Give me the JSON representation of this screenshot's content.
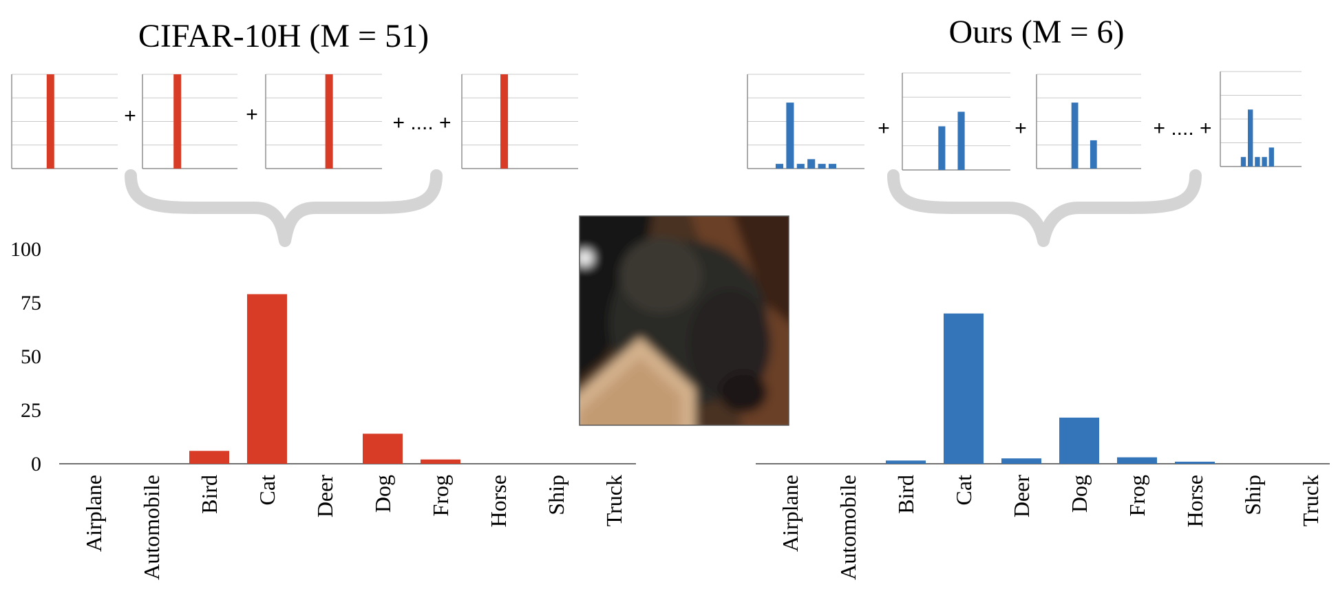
{
  "chart_data": [
    {
      "type": "bar",
      "title": "CIFAR-10H (M = 51)",
      "categories": [
        "Airplane",
        "Automobile",
        "Bird",
        "Cat",
        "Deer",
        "Dog",
        "Frog",
        "Horse",
        "Ship",
        "Truck"
      ],
      "values": [
        0,
        0,
        6,
        79,
        0,
        14,
        2,
        0,
        0,
        0
      ],
      "yticks": [
        "0",
        "25",
        "50",
        "75",
        "100"
      ],
      "ylim": [
        0,
        100
      ],
      "color": "#d83b26",
      "grid": false,
      "annotator_examples": [
        [
          0,
          0,
          0,
          100,
          0,
          0,
          0,
          0,
          0,
          0
        ],
        [
          0,
          0,
          0,
          100,
          0,
          0,
          0,
          0,
          0,
          0
        ],
        [
          0,
          0,
          0,
          0,
          0,
          100,
          0,
          0,
          0,
          0
        ],
        [
          0,
          0,
          0,
          100,
          0,
          0,
          0,
          0,
          0,
          0
        ]
      ],
      "plus_labels": [
        "+",
        "+",
        "+ .... +"
      ]
    },
    {
      "type": "bar",
      "title": "Ours (M = 6)",
      "categories": [
        "Airplane",
        "Automobile",
        "Bird",
        "Cat",
        "Deer",
        "Dog",
        "Frog",
        "Horse",
        "Ship",
        "Truck"
      ],
      "values": [
        0,
        0,
        1.5,
        70,
        2.5,
        21.5,
        3,
        0.5,
        0,
        0
      ],
      "ylim": [
        0,
        100
      ],
      "color": "#3474b8",
      "grid": false,
      "annotator_examples": [
        [
          0,
          0,
          5,
          70,
          5,
          10,
          5,
          5,
          0,
          0
        ],
        [
          0,
          0,
          0,
          45,
          0,
          60,
          0,
          0,
          0,
          0
        ],
        [
          0,
          0,
          0,
          70,
          0,
          30,
          0,
          0,
          0,
          0
        ],
        [
          0,
          0,
          10,
          60,
          10,
          10,
          20,
          0,
          0,
          0
        ]
      ],
      "plus_labels": [
        "+",
        "+",
        "+ .... +"
      ]
    }
  ],
  "image_tile": {
    "icon": "cat-photo-icon",
    "colors": [
      "#2a2622",
      "#5a3a24",
      "#d2b08a",
      "#141414"
    ]
  }
}
